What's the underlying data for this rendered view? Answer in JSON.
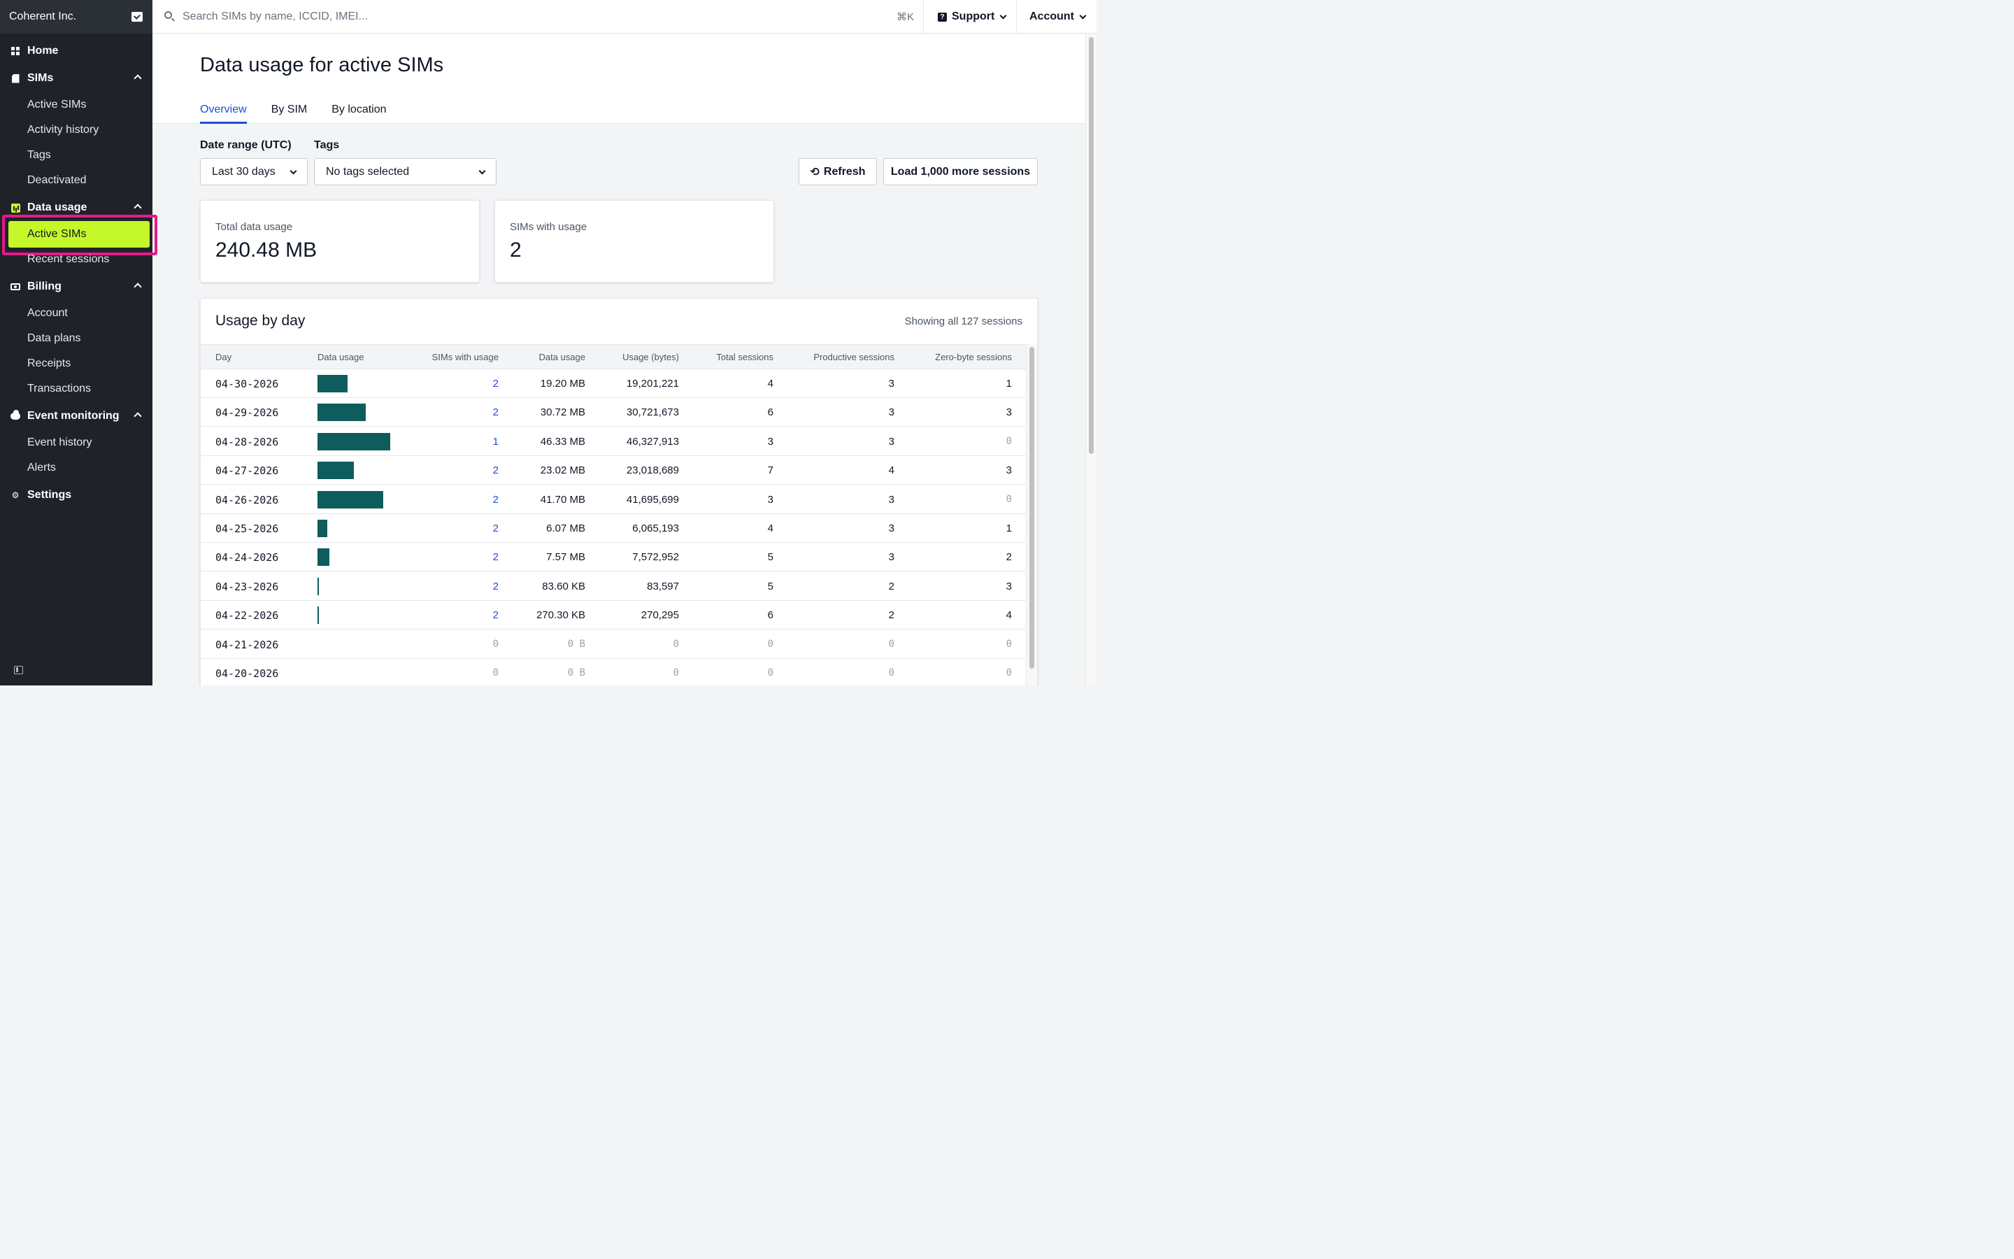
{
  "org": {
    "name": "Coherent Inc."
  },
  "sidebar": {
    "home": "Home",
    "sims": {
      "label": "SIMs",
      "items": [
        "Active SIMs",
        "Activity history",
        "Tags",
        "Deactivated"
      ]
    },
    "data_usage": {
      "label": "Data usage",
      "items": [
        "Active SIMs",
        "Recent sessions"
      ]
    },
    "billing": {
      "label": "Billing",
      "items": [
        "Account",
        "Data plans",
        "Receipts",
        "Transactions"
      ]
    },
    "event_monitoring": {
      "label": "Event monitoring",
      "items": [
        "Event history",
        "Alerts"
      ]
    },
    "settings": "Settings"
  },
  "topbar": {
    "search_placeholder": "Search SIMs by name, ICCID, IMEI...",
    "shortcut": "⌘K",
    "support": "Support",
    "account": "Account"
  },
  "page": {
    "title": "Data usage for active SIMs",
    "tabs": [
      "Overview",
      "By SIM",
      "By location"
    ]
  },
  "filters": {
    "date_label": "Date range (UTC)",
    "date_value": "Last 30 days",
    "tags_label": "Tags",
    "tags_value": "No tags selected",
    "refresh": "Refresh",
    "load_more": "Load 1,000 more sessions"
  },
  "stats": {
    "total_label": "Total data usage",
    "total_value": "240.48 MB",
    "sims_label": "SIMs with usage",
    "sims_value": "2"
  },
  "usage": {
    "title": "Usage by day",
    "meta": "Showing all 127 sessions",
    "columns": [
      "Day",
      "Data usage",
      "SIMs with usage",
      "Data usage",
      "Usage (bytes)",
      "Total sessions",
      "Productive sessions",
      "Zero-byte sessions"
    ],
    "max_mb": 46.33,
    "rows": [
      {
        "day": "04-30-2026",
        "mb": 19.2,
        "sims": "2",
        "usage": "19.20 MB",
        "bytes": "19,201,221",
        "total": "4",
        "productive": "3",
        "zero": "1"
      },
      {
        "day": "04-29-2026",
        "mb": 30.72,
        "sims": "2",
        "usage": "30.72 MB",
        "bytes": "30,721,673",
        "total": "6",
        "productive": "3",
        "zero": "3"
      },
      {
        "day": "04-28-2026",
        "mb": 46.33,
        "sims": "1",
        "usage": "46.33 MB",
        "bytes": "46,327,913",
        "total": "3",
        "productive": "3",
        "zero": "0"
      },
      {
        "day": "04-27-2026",
        "mb": 23.02,
        "sims": "2",
        "usage": "23.02 MB",
        "bytes": "23,018,689",
        "total": "7",
        "productive": "4",
        "zero": "3"
      },
      {
        "day": "04-26-2026",
        "mb": 41.7,
        "sims": "2",
        "usage": "41.70 MB",
        "bytes": "41,695,699",
        "total": "3",
        "productive": "3",
        "zero": "0"
      },
      {
        "day": "04-25-2026",
        "mb": 6.07,
        "sims": "2",
        "usage": "6.07 MB",
        "bytes": "6,065,193",
        "total": "4",
        "productive": "3",
        "zero": "1"
      },
      {
        "day": "04-24-2026",
        "mb": 7.57,
        "sims": "2",
        "usage": "7.57 MB",
        "bytes": "7,572,952",
        "total": "5",
        "productive": "3",
        "zero": "2"
      },
      {
        "day": "04-23-2026",
        "mb": 0.084,
        "sims": "2",
        "usage": "83.60 KB",
        "bytes": "83,597",
        "total": "5",
        "productive": "2",
        "zero": "3"
      },
      {
        "day": "04-22-2026",
        "mb": 0.27,
        "sims": "2",
        "usage": "270.30 KB",
        "bytes": "270,295",
        "total": "6",
        "productive": "2",
        "zero": "4"
      },
      {
        "day": "04-21-2026",
        "mb": 0,
        "sims": "0",
        "usage": "0 B",
        "bytes": "0",
        "total": "0",
        "productive": "0",
        "zero": "0"
      },
      {
        "day": "04-20-2026",
        "mb": 0,
        "sims": "0",
        "usage": "0 B",
        "bytes": "0",
        "total": "0",
        "productive": "0",
        "zero": "0"
      }
    ]
  }
}
